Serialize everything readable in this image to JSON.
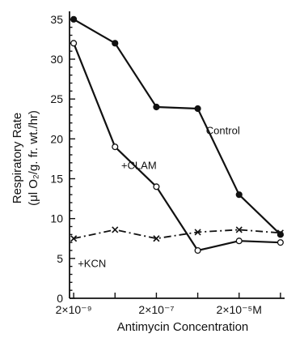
{
  "chart_data": {
    "type": "line",
    "title": "",
    "xlabel": "Antimycin Concentration",
    "ylabel_line1": "Respiratory Rate",
    "ylabel_line2": "(μl O₂/g. fr. wt./hr)",
    "x": [
      1,
      2,
      3,
      4,
      5,
      6
    ],
    "xlim": [
      0.9,
      6.1
    ],
    "xticks": [
      {
        "x": 1,
        "label": "2×10⁻⁹"
      },
      {
        "x": 3,
        "label": "2×10⁻⁷"
      },
      {
        "x": 5,
        "label": "2×10⁻⁵M"
      }
    ],
    "ylim": [
      0,
      36
    ],
    "yticks": [
      0,
      5,
      10,
      15,
      20,
      25,
      30,
      35
    ],
    "grid": false,
    "series": [
      {
        "name": "Control",
        "marker": "filled-circle",
        "dash": "solid",
        "values": [
          35,
          32,
          24,
          23.8,
          13,
          8
        ]
      },
      {
        "name": "+CLAM",
        "marker": "open-circle",
        "dash": "solid",
        "values": [
          32,
          19,
          14,
          6,
          7.2,
          7
        ]
      },
      {
        "name": "+KCN",
        "marker": "x",
        "dash": "dashdot",
        "values": [
          7.5,
          8.6,
          7.5,
          8.3,
          8.6,
          8.2
        ]
      }
    ],
    "annotations": [
      {
        "text": "Control",
        "series": "Control"
      },
      {
        "text": "+CLAM",
        "series": "+CLAM"
      },
      {
        "text": "+KCN",
        "series": "+KCN"
      }
    ]
  },
  "colors": {
    "ink": "#111111",
    "background": "#ffffff"
  }
}
